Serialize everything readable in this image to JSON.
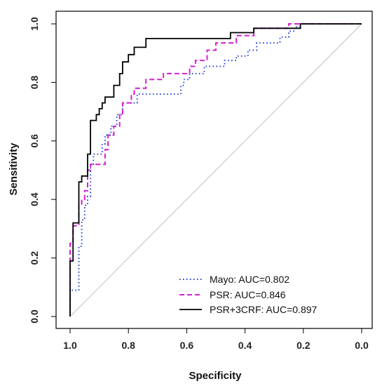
{
  "chart_data": {
    "type": "line",
    "title": "",
    "xlabel": "Specificity",
    "ylabel": "Sensitivity",
    "x_reversed": true,
    "xlim": [
      1.0,
      0.0
    ],
    "ylim": [
      0.0,
      1.0
    ],
    "xticks": [
      "1.0",
      "0.8",
      "0.6",
      "0.4",
      "0.2",
      "0.0"
    ],
    "yticks": [
      "0.0",
      "0.2",
      "0.4",
      "0.6",
      "0.8",
      "1.0"
    ],
    "grid": false,
    "legend_position": "bottom-right",
    "reference_line": {
      "from": [
        1.0,
        0.0
      ],
      "to": [
        0.0,
        1.0
      ],
      "color": "#bfbfbf"
    },
    "series": [
      {
        "name": "Mayo: AUC=0.802",
        "color": "#1f3fd6",
        "style": "dotted",
        "points": [
          [
            1.0,
            0.0
          ],
          [
            1.0,
            0.09
          ],
          [
            0.97,
            0.09
          ],
          [
            0.97,
            0.24
          ],
          [
            0.96,
            0.24
          ],
          [
            0.96,
            0.33
          ],
          [
            0.95,
            0.33
          ],
          [
            0.95,
            0.38
          ],
          [
            0.94,
            0.38
          ],
          [
            0.94,
            0.41
          ],
          [
            0.93,
            0.41
          ],
          [
            0.93,
            0.52
          ],
          [
            0.92,
            0.52
          ],
          [
            0.92,
            0.555
          ],
          [
            0.89,
            0.555
          ],
          [
            0.89,
            0.59
          ],
          [
            0.88,
            0.59
          ],
          [
            0.88,
            0.62
          ],
          [
            0.86,
            0.62
          ],
          [
            0.86,
            0.65
          ],
          [
            0.84,
            0.65
          ],
          [
            0.84,
            0.69
          ],
          [
            0.82,
            0.69
          ],
          [
            0.82,
            0.73
          ],
          [
            0.77,
            0.73
          ],
          [
            0.77,
            0.76
          ],
          [
            0.62,
            0.76
          ],
          [
            0.62,
            0.79
          ],
          [
            0.61,
            0.79
          ],
          [
            0.61,
            0.81
          ],
          [
            0.59,
            0.81
          ],
          [
            0.59,
            0.83
          ],
          [
            0.54,
            0.83
          ],
          [
            0.54,
            0.855
          ],
          [
            0.47,
            0.855
          ],
          [
            0.47,
            0.875
          ],
          [
            0.43,
            0.875
          ],
          [
            0.43,
            0.89
          ],
          [
            0.39,
            0.89
          ],
          [
            0.39,
            0.91
          ],
          [
            0.36,
            0.91
          ],
          [
            0.36,
            0.935
          ],
          [
            0.28,
            0.935
          ],
          [
            0.28,
            0.955
          ],
          [
            0.25,
            0.955
          ],
          [
            0.25,
            0.975
          ],
          [
            0.23,
            0.975
          ],
          [
            0.23,
            0.99
          ],
          [
            0.21,
            0.99
          ],
          [
            0.21,
            1.0
          ],
          [
            0.0,
            1.0
          ]
        ]
      },
      {
        "name": "PSR: AUC=0.846",
        "color": "#d61fd6",
        "style": "dashed",
        "points": [
          [
            1.0,
            0.0
          ],
          [
            1.0,
            0.25
          ],
          [
            0.99,
            0.25
          ],
          [
            0.99,
            0.31
          ],
          [
            0.97,
            0.31
          ],
          [
            0.97,
            0.38
          ],
          [
            0.96,
            0.38
          ],
          [
            0.96,
            0.4
          ],
          [
            0.95,
            0.4
          ],
          [
            0.95,
            0.43
          ],
          [
            0.94,
            0.43
          ],
          [
            0.94,
            0.5
          ],
          [
            0.93,
            0.5
          ],
          [
            0.93,
            0.52
          ],
          [
            0.88,
            0.52
          ],
          [
            0.88,
            0.57
          ],
          [
            0.87,
            0.57
          ],
          [
            0.87,
            0.62
          ],
          [
            0.85,
            0.62
          ],
          [
            0.85,
            0.65
          ],
          [
            0.83,
            0.65
          ],
          [
            0.83,
            0.69
          ],
          [
            0.82,
            0.69
          ],
          [
            0.82,
            0.73
          ],
          [
            0.79,
            0.73
          ],
          [
            0.79,
            0.76
          ],
          [
            0.78,
            0.76
          ],
          [
            0.78,
            0.78
          ],
          [
            0.74,
            0.78
          ],
          [
            0.74,
            0.81
          ],
          [
            0.68,
            0.81
          ],
          [
            0.68,
            0.83
          ],
          [
            0.59,
            0.83
          ],
          [
            0.59,
            0.855
          ],
          [
            0.57,
            0.855
          ],
          [
            0.57,
            0.875
          ],
          [
            0.53,
            0.875
          ],
          [
            0.53,
            0.91
          ],
          [
            0.5,
            0.91
          ],
          [
            0.5,
            0.935
          ],
          [
            0.43,
            0.935
          ],
          [
            0.43,
            0.96
          ],
          [
            0.37,
            0.96
          ],
          [
            0.37,
            0.985
          ],
          [
            0.25,
            0.985
          ],
          [
            0.25,
            1.0
          ],
          [
            0.0,
            1.0
          ]
        ]
      },
      {
        "name": "PSR+3CRF: AUC=0.897",
        "color": "#000000",
        "style": "solid",
        "points": [
          [
            1.0,
            0.0
          ],
          [
            1.0,
            0.19
          ],
          [
            0.99,
            0.19
          ],
          [
            0.99,
            0.32
          ],
          [
            0.97,
            0.32
          ],
          [
            0.97,
            0.46
          ],
          [
            0.96,
            0.46
          ],
          [
            0.96,
            0.48
          ],
          [
            0.94,
            0.48
          ],
          [
            0.94,
            0.555
          ],
          [
            0.93,
            0.555
          ],
          [
            0.93,
            0.67
          ],
          [
            0.91,
            0.67
          ],
          [
            0.91,
            0.69
          ],
          [
            0.9,
            0.69
          ],
          [
            0.9,
            0.71
          ],
          [
            0.89,
            0.71
          ],
          [
            0.89,
            0.73
          ],
          [
            0.88,
            0.73
          ],
          [
            0.88,
            0.75
          ],
          [
            0.85,
            0.75
          ],
          [
            0.85,
            0.79
          ],
          [
            0.83,
            0.79
          ],
          [
            0.83,
            0.83
          ],
          [
            0.82,
            0.83
          ],
          [
            0.82,
            0.87
          ],
          [
            0.8,
            0.87
          ],
          [
            0.8,
            0.895
          ],
          [
            0.78,
            0.895
          ],
          [
            0.78,
            0.92
          ],
          [
            0.74,
            0.92
          ],
          [
            0.74,
            0.95
          ],
          [
            0.45,
            0.95
          ],
          [
            0.45,
            0.97
          ],
          [
            0.37,
            0.97
          ],
          [
            0.37,
            0.985
          ],
          [
            0.21,
            0.985
          ],
          [
            0.21,
            1.0
          ],
          [
            0.0,
            1.0
          ]
        ]
      }
    ]
  }
}
